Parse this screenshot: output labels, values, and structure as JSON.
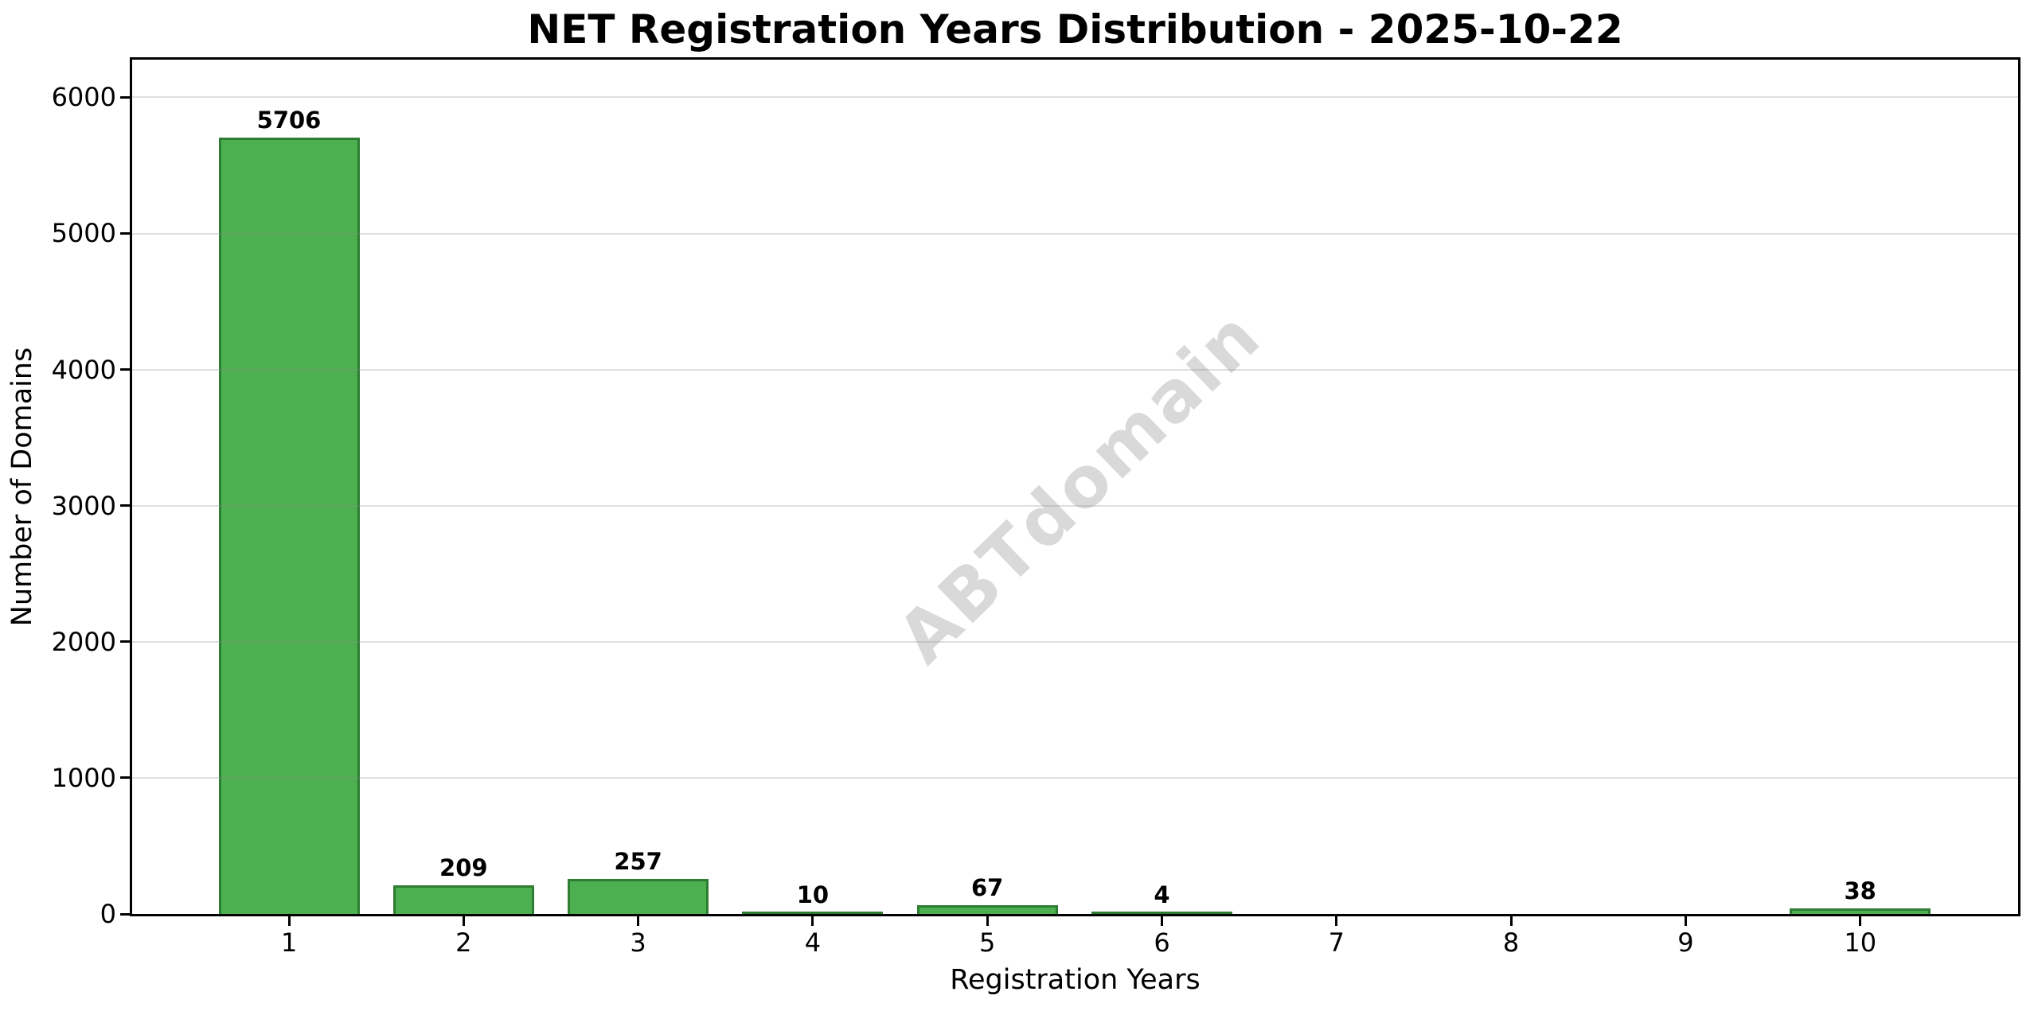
{
  "page": {
    "background": "#ffffff"
  },
  "chart_data": {
    "type": "bar",
    "title": "NET Registration Years Distribution - 2025-10-22",
    "xlabel": "Registration Years",
    "ylabel": "Number of Domains",
    "categories": [
      "1",
      "2",
      "3",
      "4",
      "5",
      "6",
      "7",
      "8",
      "9",
      "10"
    ],
    "values": [
      5706,
      209,
      257,
      10,
      67,
      4,
      0,
      0,
      0,
      38
    ],
    "value_labels": [
      "5706",
      "209",
      "257",
      "10",
      "67",
      "4",
      "",
      "",
      "",
      "38"
    ],
    "yticks": [
      0,
      1000,
      2000,
      3000,
      4000,
      5000,
      6000
    ],
    "ylim": [
      0,
      6277
    ],
    "xlim_slots": 10,
    "grid": "horizontal",
    "legend": "none",
    "bar_color": "#4caf50",
    "bar_edge_color": "#2e7d32",
    "grid_color": "#e3e3e3",
    "axis_color": "#000000",
    "background_color": "#ffffff",
    "watermark": {
      "text": "ABTdomain",
      "color": "#d9d9d9",
      "rotation_deg": -44
    }
  }
}
